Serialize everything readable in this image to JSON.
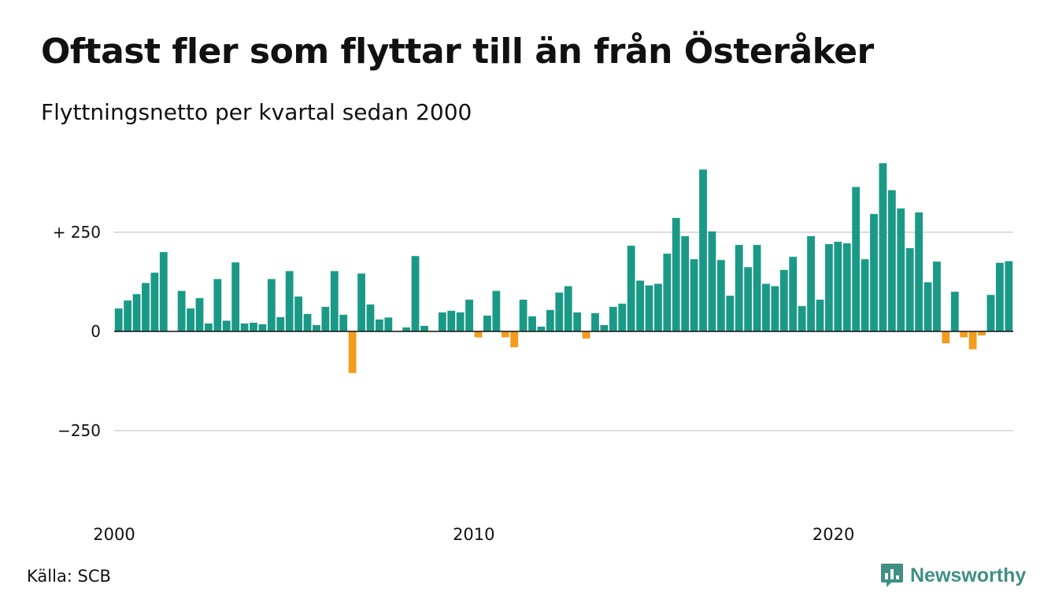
{
  "title": "Oftast fler som flyttar till än från Österåker",
  "subtitle": "Flyttningsnetto per kvartal sedan 2000",
  "source": "Källa: SCB",
  "brand": {
    "name": "Newsworthy",
    "icon": "bar-chart-speech-bubble-icon"
  },
  "colors": {
    "positive": "#1b9987",
    "negative": "#f39c1d",
    "grid": "#dddddd",
    "brand": "#3f8f84"
  },
  "chart_data": {
    "type": "bar",
    "start_year": 2000,
    "periods_per_year": 4,
    "x_ticks": [
      "2000",
      "2010",
      "2020"
    ],
    "y_ticks": [
      {
        "value": 250,
        "label": "+ 250"
      },
      {
        "value": 0,
        "label": "0"
      },
      {
        "value": -250,
        "label": "−250"
      }
    ],
    "ylim": [
      -400,
      430
    ],
    "grid": true,
    "values": [
      58,
      78,
      94,
      122,
      148,
      200,
      0,
      102,
      58,
      84,
      20,
      132,
      27,
      174,
      20,
      22,
      18,
      132,
      36,
      152,
      88,
      44,
      16,
      62,
      152,
      42,
      -105,
      146,
      68,
      30,
      35,
      0,
      10,
      190,
      14,
      0,
      48,
      52,
      48,
      80,
      -15,
      40,
      102,
      -15,
      -40,
      80,
      38,
      12,
      54,
      98,
      114,
      48,
      -18,
      46,
      16,
      62,
      70,
      216,
      128,
      116,
      120,
      196,
      286,
      240,
      182,
      408,
      252,
      180,
      90,
      218,
      162,
      218,
      120,
      114,
      155,
      188,
      64,
      240,
      80,
      220,
      226,
      222,
      364,
      182,
      296,
      424,
      356,
      310,
      210,
      300,
      124,
      176,
      -30,
      100,
      -15,
      -45,
      -10,
      92,
      173,
      177
    ]
  }
}
